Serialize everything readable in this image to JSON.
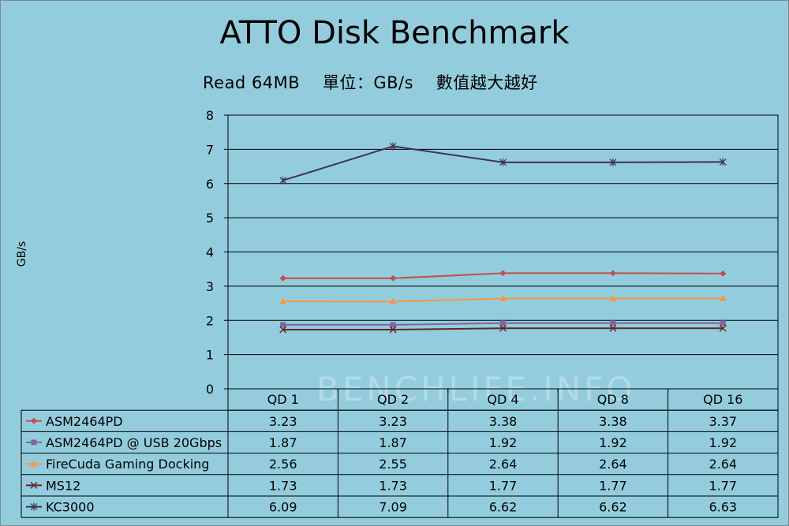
{
  "title": "ATTO Disk Benchmark",
  "subtitle": "Read 64MB　 單位：GB/s　 數值越大越好",
  "watermark": "BENCHLIFE.INFO",
  "chart_data": {
    "type": "line",
    "categories": [
      "QD 1",
      "QD 2",
      "QD 4",
      "QD 8",
      "QD 16"
    ],
    "ylabel": "GB/s",
    "ylim": [
      0,
      8
    ],
    "yticks": [
      "0",
      "1",
      "2",
      "3",
      "4",
      "5",
      "6",
      "7",
      "8"
    ],
    "grid": true,
    "legend": "data table",
    "series": [
      {
        "name": "ASM2464PD",
        "values": [
          3.23,
          3.23,
          3.38,
          3.38,
          3.37
        ],
        "labels": [
          "3.23",
          "3.23",
          "3.38",
          "3.38",
          "3.37"
        ],
        "color": "#C0504D",
        "marker": "diamond"
      },
      {
        "name": "ASM2464PD @ USB 20Gbps",
        "values": [
          1.87,
          1.87,
          1.92,
          1.92,
          1.92
        ],
        "labels": [
          "1.87",
          "1.87",
          "1.92",
          "1.92",
          "1.92"
        ],
        "color": "#8064A2",
        "marker": "square"
      },
      {
        "name": "FireCuda Gaming Docking",
        "values": [
          2.56,
          2.55,
          2.64,
          2.64,
          2.64
        ],
        "labels": [
          "2.56",
          "2.55",
          "2.64",
          "2.64",
          "2.64"
        ],
        "color": "#F79646",
        "marker": "triangle"
      },
      {
        "name": "MS12",
        "values": [
          1.73,
          1.73,
          1.77,
          1.77,
          1.77
        ],
        "labels": [
          "1.73",
          "1.73",
          "1.77",
          "1.77",
          "1.77"
        ],
        "color": "#632523",
        "marker": "x"
      },
      {
        "name": "KC3000",
        "values": [
          6.09,
          7.09,
          6.62,
          6.62,
          6.63
        ],
        "labels": [
          "6.09",
          "7.09",
          "6.62",
          "6.62",
          "6.63"
        ],
        "color": "#403151",
        "marker": "star"
      }
    ]
  }
}
